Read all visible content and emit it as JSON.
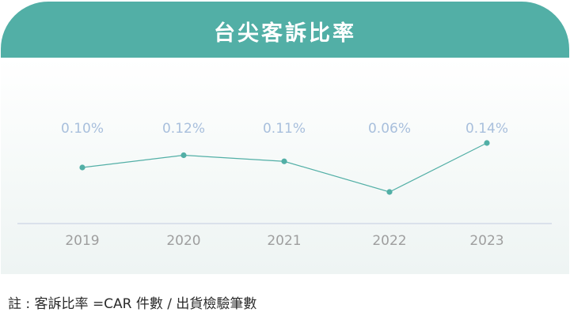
{
  "chart_data": {
    "type": "line",
    "title": "台尖客訴比率",
    "categories": [
      "2019",
      "2020",
      "2021",
      "2022",
      "2023"
    ],
    "series": [
      {
        "values": [
          0.1,
          0.12,
          0.11,
          0.06,
          0.14
        ],
        "labels": [
          "0.10%",
          "0.12%",
          "0.11%",
          "0.06%",
          "0.14%"
        ]
      }
    ],
    "ylim": [
      0,
      0.2
    ],
    "grid": false,
    "colors": {
      "line": "#52afa6",
      "marker": "#52afa6",
      "label": "#a8bfdc",
      "tick": "#9e9e9e",
      "axis": "#c2cce0",
      "header": "#52afa6"
    }
  },
  "footnote": "註 : 客訴比率 =CAR 件數 / 出貨檢驗筆數"
}
